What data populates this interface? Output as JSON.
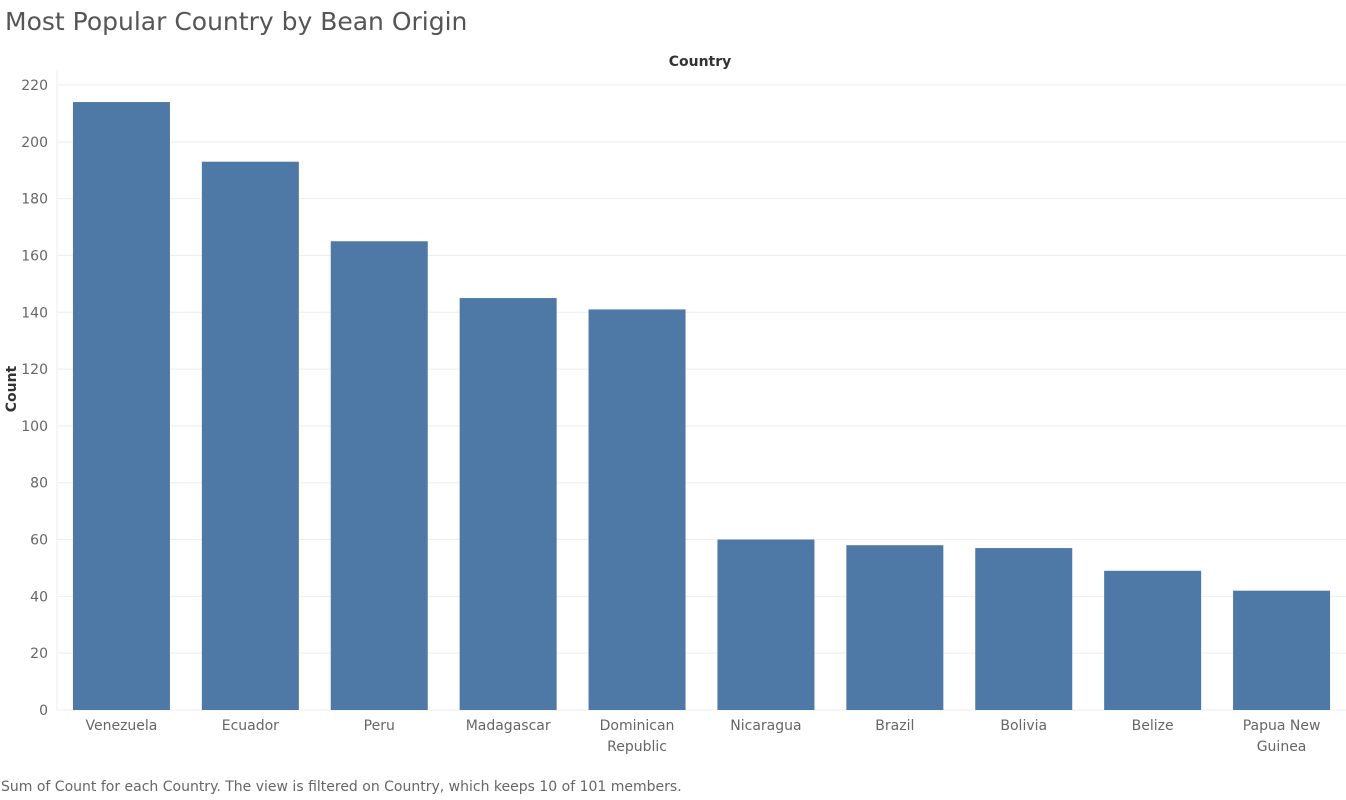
{
  "title": "Most Popular Country by Bean Origin",
  "footer": "Sum of Count for each Country. The view is filtered on Country, which keeps 10 of 101 members.",
  "colors": {
    "bar": "#4e79a7",
    "grid": "#eeeeee",
    "axis_text": "#666666"
  },
  "chart_data": {
    "type": "bar",
    "xlabel": "Country",
    "ylabel": "Count",
    "ylim": [
      0,
      220
    ],
    "yticks": [
      0,
      20,
      40,
      60,
      80,
      100,
      120,
      140,
      160,
      180,
      200,
      220
    ],
    "grid": true,
    "categories": [
      "Venezuela",
      "Ecuador",
      "Peru",
      "Madagascar",
      "Dominican Republic",
      "Nicaragua",
      "Brazil",
      "Bolivia",
      "Belize",
      "Papua New Guinea"
    ],
    "category_lines": [
      [
        "Venezuela"
      ],
      [
        "Ecuador"
      ],
      [
        "Peru"
      ],
      [
        "Madagascar"
      ],
      [
        "Dominican",
        "Republic"
      ],
      [
        "Nicaragua"
      ],
      [
        "Brazil"
      ],
      [
        "Bolivia"
      ],
      [
        "Belize"
      ],
      [
        "Papua New",
        "Guinea"
      ]
    ],
    "values": [
      214,
      193,
      165,
      145,
      141,
      60,
      58,
      57,
      49,
      42
    ]
  }
}
